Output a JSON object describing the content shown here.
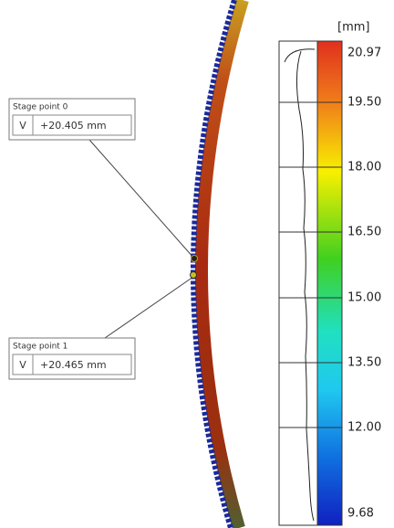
{
  "stage_points": [
    {
      "title": "Stage point 0",
      "axis": "V",
      "value": "+20.405 mm"
    },
    {
      "title": "Stage point 1",
      "axis": "V",
      "value": "+20.465 mm"
    }
  ],
  "color_scale": {
    "unit": "[mm]",
    "labels": [
      "20.97",
      "19.50",
      "18.00",
      "16.50",
      "15.00",
      "13.50",
      "12.00",
      "9.68"
    ]
  }
}
